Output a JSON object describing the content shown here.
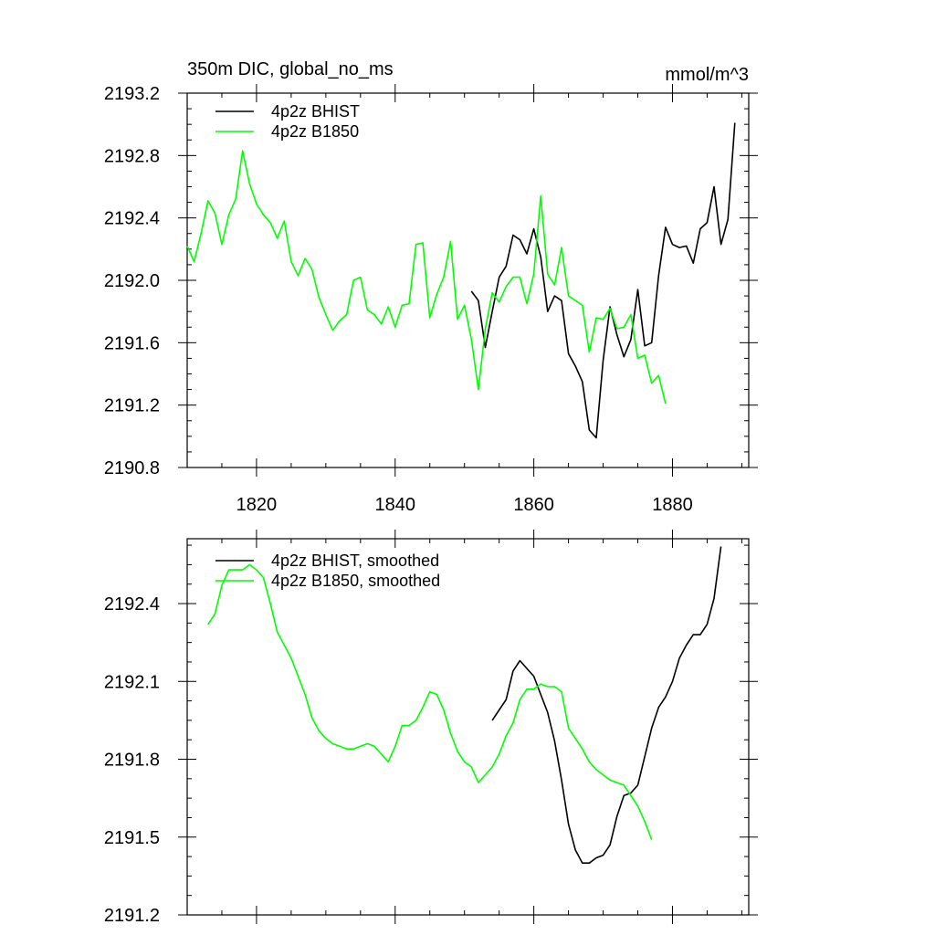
{
  "chart_data": [
    {
      "type": "line",
      "title": "350m DIC, global_no_ms",
      "units": "mmol/m^3",
      "xlim": [
        1810,
        1891
      ],
      "ylim": [
        2190.8,
        2193.2
      ],
      "xticks": [
        1820,
        1840,
        1860,
        1880
      ],
      "yticks": [
        2190.8,
        2191.2,
        2191.6,
        2192.0,
        2192.4,
        2192.8,
        2193.2
      ],
      "ytick_labels": [
        "2190.8",
        "2191.2",
        "2191.6",
        "2192.0",
        "2192.4",
        "2192.8",
        "2193.2"
      ],
      "legend_position": "top-left",
      "series": [
        {
          "name": "4p2z BHIST",
          "color": "#000000",
          "x": [
            1851,
            1852,
            1853,
            1854,
            1855,
            1856,
            1857,
            1858,
            1859,
            1860,
            1861,
            1862,
            1863,
            1864,
            1865,
            1866,
            1867,
            1868,
            1869,
            1870,
            1871,
            1872,
            1873,
            1874,
            1875,
            1876,
            1877,
            1878,
            1879,
            1880,
            1881,
            1882,
            1883,
            1884,
            1885,
            1886,
            1887,
            1888,
            1889
          ],
          "values": [
            2191.93,
            2191.87,
            2191.57,
            2191.8,
            2192.02,
            2192.09,
            2192.29,
            2192.26,
            2192.17,
            2192.33,
            2192.15,
            2191.8,
            2191.9,
            2191.87,
            2191.53,
            2191.45,
            2191.35,
            2191.04,
            2190.99,
            2191.49,
            2191.83,
            2191.65,
            2191.51,
            2191.62,
            2191.94,
            2191.58,
            2191.6,
            2192.03,
            2192.34,
            2192.23,
            2192.21,
            2192.22,
            2192.11,
            2192.33,
            2192.37,
            2192.6,
            2192.23,
            2192.39,
            2193.01
          ]
        },
        {
          "name": "4p2z B1850",
          "color": "#00ff00",
          "x": [
            1810,
            1811,
            1812,
            1813,
            1814,
            1815,
            1816,
            1817,
            1818,
            1819,
            1820,
            1821,
            1822,
            1823,
            1824,
            1825,
            1826,
            1827,
            1828,
            1829,
            1830,
            1831,
            1832,
            1833,
            1834,
            1835,
            1836,
            1837,
            1838,
            1839,
            1840,
            1841,
            1842,
            1843,
            1844,
            1845,
            1846,
            1847,
            1848,
            1849,
            1850,
            1851,
            1852,
            1853,
            1854,
            1855,
            1856,
            1857,
            1858,
            1859,
            1860,
            1861,
            1862,
            1863,
            1864,
            1865,
            1866,
            1867,
            1868,
            1869,
            1870,
            1871,
            1872,
            1873,
            1874,
            1875,
            1876,
            1877,
            1878,
            1879
          ],
          "values": [
            2192.22,
            2192.12,
            2192.3,
            2192.51,
            2192.43,
            2192.23,
            2192.42,
            2192.52,
            2192.83,
            2192.62,
            2192.49,
            2192.42,
            2192.37,
            2192.27,
            2192.38,
            2192.12,
            2192.03,
            2192.14,
            2192.07,
            2191.89,
            2191.78,
            2191.68,
            2191.74,
            2191.78,
            2192.0,
            2192.02,
            2191.81,
            2191.78,
            2191.72,
            2191.83,
            2191.7,
            2191.84,
            2191.85,
            2192.23,
            2192.24,
            2191.76,
            2191.91,
            2192.02,
            2192.25,
            2191.75,
            2191.84,
            2191.62,
            2191.3,
            2191.69,
            2191.92,
            2191.86,
            2191.96,
            2192.02,
            2192.02,
            2191.85,
            2192.04,
            2192.54,
            2192.04,
            2191.97,
            2192.21,
            2191.9,
            2191.87,
            2191.84,
            2191.54,
            2191.76,
            2191.75,
            2191.82,
            2191.69,
            2191.7,
            2191.78,
            2191.5,
            2191.52,
            2191.34,
            2191.39,
            2191.21
          ]
        }
      ]
    },
    {
      "type": "line",
      "xlim": [
        1810,
        1891
      ],
      "ylim": [
        2191.2,
        2192.65
      ],
      "xticks": [
        1820,
        1840,
        1860,
        1880
      ],
      "yticks": [
        2191.2,
        2191.5,
        2191.8,
        2192.1,
        2192.4
      ],
      "ytick_labels": [
        "2191.2",
        "2191.5",
        "2191.8",
        "2192.1",
        "2192.4"
      ],
      "legend_position": "top-left",
      "series": [
        {
          "name": "4p2z BHIST, smoothed",
          "color": "#000000",
          "x": [
            1854,
            1855,
            1856,
            1857,
            1858,
            1859,
            1860,
            1861,
            1862,
            1863,
            1864,
            1865,
            1866,
            1867,
            1868,
            1869,
            1870,
            1871,
            1872,
            1873,
            1874,
            1875,
            1876,
            1877,
            1878,
            1879,
            1880,
            1881,
            1882,
            1883,
            1884,
            1885,
            1886,
            1887
          ],
          "values": [
            2191.95,
            2191.99,
            2192.03,
            2192.14,
            2192.18,
            2192.15,
            2192.12,
            2192.05,
            2191.98,
            2191.87,
            2191.72,
            2191.55,
            2191.45,
            2191.4,
            2191.4,
            2191.42,
            2191.43,
            2191.47,
            2191.58,
            2191.66,
            2191.67,
            2191.7,
            2191.81,
            2191.92,
            2192.0,
            2192.04,
            2192.1,
            2192.19,
            2192.24,
            2192.28,
            2192.28,
            2192.32,
            2192.42,
            2192.62
          ]
        },
        {
          "name": "4p2z B1850, smoothed",
          "color": "#00ff00",
          "x": [
            1813,
            1814,
            1815,
            1816,
            1817,
            1818,
            1819,
            1820,
            1821,
            1822,
            1823,
            1824,
            1825,
            1826,
            1827,
            1828,
            1829,
            1830,
            1831,
            1832,
            1833,
            1834,
            1835,
            1836,
            1837,
            1838,
            1839,
            1840,
            1841,
            1842,
            1843,
            1844,
            1845,
            1846,
            1847,
            1848,
            1849,
            1850,
            1851,
            1852,
            1853,
            1854,
            1855,
            1856,
            1857,
            1858,
            1859,
            1860,
            1861,
            1862,
            1863,
            1864,
            1865,
            1866,
            1867,
            1868,
            1869,
            1870,
            1871,
            1872,
            1873,
            1874,
            1875,
            1876,
            1877
          ],
          "values": [
            2192.32,
            2192.36,
            2192.47,
            2192.53,
            2192.53,
            2192.53,
            2192.55,
            2192.53,
            2192.5,
            2192.4,
            2192.29,
            2192.24,
            2192.19,
            2192.12,
            2192.05,
            2191.96,
            2191.91,
            2191.88,
            2191.86,
            2191.85,
            2191.84,
            2191.84,
            2191.85,
            2191.86,
            2191.85,
            2191.82,
            2191.79,
            2191.85,
            2191.93,
            2191.93,
            2191.95,
            2192.0,
            2192.06,
            2192.05,
            2191.99,
            2191.9,
            2191.83,
            2191.79,
            2191.77,
            2191.71,
            2191.74,
            2191.77,
            2191.82,
            2191.89,
            2191.94,
            2192.03,
            2192.07,
            2192.07,
            2192.09,
            2192.08,
            2192.08,
            2192.06,
            2191.92,
            2191.88,
            2191.84,
            2191.79,
            2191.76,
            2191.74,
            2191.72,
            2191.71,
            2191.7,
            2191.66,
            2191.62,
            2191.56,
            2191.49
          ]
        }
      ]
    }
  ]
}
